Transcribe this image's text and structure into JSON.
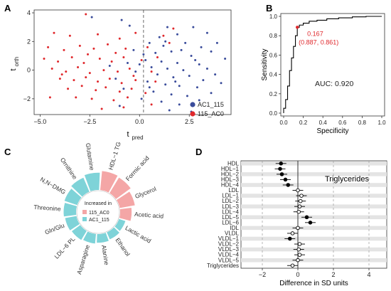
{
  "panels": {
    "A": "A",
    "B": "B",
    "C": "C",
    "D": "D"
  },
  "chart_data": [
    {
      "panel": "A",
      "type": "scatter",
      "xlabel": "t",
      "xlabel_sub": "pred",
      "ylabel": "t",
      "ylabel_sub": "orth",
      "xlim": [
        -5.3,
        4.6
      ],
      "ylim": [
        -3.1,
        4.2
      ],
      "x_ticks": [
        -5.0,
        -2.5,
        0.0,
        2.5
      ],
      "x_tick_labels": [
        "−5.0",
        "−2.5",
        "0.0",
        "2.5"
      ],
      "y_ticks": [
        -2,
        0,
        2,
        4
      ],
      "y_tick_labels": [
        "−2",
        "0",
        "2",
        "4"
      ],
      "vline": 0.2,
      "colors": {
        "AC1_115": "#3a4c9b",
        "115_AC0": "#e0282c"
      },
      "legend": {
        "position": "bottom-right",
        "entries": [
          "AC1_115",
          "115_AC0"
        ]
      },
      "series": [
        {
          "name": "AC1_115",
          "color": "#3a4c9b",
          "points": [
            [
              -2.4,
              3.7
            ],
            [
              -0.9,
              3.5
            ],
            [
              -0.5,
              3.1
            ],
            [
              1.4,
              3.0
            ],
            [
              2.7,
              3.0
            ],
            [
              1.0,
              2.3
            ],
            [
              1.9,
              2.5
            ],
            [
              3.4,
              2.6
            ],
            [
              0.5,
              1.9
            ],
            [
              1.2,
              1.7
            ],
            [
              2.3,
              1.9
            ],
            [
              3.1,
              1.6
            ],
            [
              3.6,
              1.3
            ],
            [
              -0.3,
              1.4
            ],
            [
              0.8,
              1.2
            ],
            [
              1.6,
              1.3
            ],
            [
              2.6,
              1.0
            ],
            [
              4.3,
              0.8
            ],
            [
              0.3,
              0.7
            ],
            [
              1.1,
              0.6
            ],
            [
              1.9,
              0.5
            ],
            [
              3.0,
              0.4
            ],
            [
              -0.6,
              0.5
            ],
            [
              0.6,
              0.2
            ],
            [
              1.4,
              0.1
            ],
            [
              2.2,
              0.0
            ],
            [
              3.4,
              0.1
            ],
            [
              3.8,
              -0.3
            ],
            [
              -0.2,
              -0.1
            ],
            [
              0.9,
              -0.3
            ],
            [
              1.7,
              -0.5
            ],
            [
              2.5,
              -0.4
            ],
            [
              3.2,
              -0.7
            ],
            [
              4.1,
              -0.9
            ],
            [
              0.4,
              -0.8
            ],
            [
              1.3,
              -1.0
            ],
            [
              2.0,
              -1.1
            ],
            [
              2.9,
              -1.2
            ],
            [
              -0.8,
              -1.3
            ],
            [
              0.7,
              -1.5
            ],
            [
              1.6,
              -1.7
            ],
            [
              2.4,
              -1.8
            ],
            [
              3.6,
              -1.6
            ],
            [
              0.1,
              -2.0
            ],
            [
              1.1,
              -2.2
            ],
            [
              2.0,
              -2.4
            ],
            [
              3.0,
              -2.1
            ],
            [
              -1.0,
              -2.5
            ],
            [
              1.5,
              -2.8
            ],
            [
              2.6,
              -2.9
            ],
            [
              0.5,
              -1.2
            ],
            [
              1.8,
              -0.8
            ],
            [
              2.8,
              0.7
            ],
            [
              3.9,
              1.9
            ],
            [
              0.2,
              1.1
            ],
            [
              1.3,
              2.0
            ],
            [
              2.1,
              1.4
            ],
            [
              -1.5,
              0.3
            ],
            [
              -1.2,
              -0.6
            ],
            [
              0.0,
              0.4
            ]
          ]
        },
        {
          "name": "115_AC0",
          "color": "#e0282c",
          "points": [
            [
              -2.7,
              3.9
            ],
            [
              -4.3,
              2.6
            ],
            [
              -3.5,
              2.4
            ],
            [
              -2.1,
              2.5
            ],
            [
              -1.0,
              2.2
            ],
            [
              -0.2,
              2.6
            ],
            [
              1.2,
              2.4
            ],
            [
              1.7,
              2.9
            ],
            [
              -4.6,
              1.6
            ],
            [
              -3.8,
              1.4
            ],
            [
              -3.0,
              1.7
            ],
            [
              -2.3,
              1.5
            ],
            [
              -1.6,
              1.8
            ],
            [
              -0.7,
              1.5
            ],
            [
              0.4,
              1.6
            ],
            [
              1.5,
              1.9
            ],
            [
              -4.8,
              0.8
            ],
            [
              -4.1,
              0.6
            ],
            [
              -3.4,
              0.9
            ],
            [
              -2.8,
              0.5
            ],
            [
              -2.0,
              0.8
            ],
            [
              -1.4,
              0.6
            ],
            [
              -0.8,
              0.9
            ],
            [
              0.1,
              0.7
            ],
            [
              0.9,
              0.9
            ],
            [
              -4.4,
              0.1
            ],
            [
              -3.7,
              -0.1
            ],
            [
              -3.1,
              0.2
            ],
            [
              -2.5,
              -0.2
            ],
            [
              -1.8,
              0.0
            ],
            [
              -1.1,
              -0.1
            ],
            [
              -0.5,
              0.1
            ],
            [
              0.6,
              -0.1
            ],
            [
              -4.0,
              -0.6
            ],
            [
              -3.3,
              -0.7
            ],
            [
              -2.7,
              -0.5
            ],
            [
              -2.1,
              -0.8
            ],
            [
              -1.5,
              -0.6
            ],
            [
              -0.9,
              -0.9
            ],
            [
              -0.2,
              -0.7
            ],
            [
              0.8,
              -0.8
            ],
            [
              -3.6,
              -1.3
            ],
            [
              -2.9,
              -1.1
            ],
            [
              -2.2,
              -1.4
            ],
            [
              -1.7,
              -1.2
            ],
            [
              -1.0,
              -1.5
            ],
            [
              -0.4,
              -1.3
            ],
            [
              0.3,
              -1.6
            ],
            [
              -4.5,
              -1.9
            ],
            [
              -3.2,
              -1.9
            ],
            [
              -2.4,
              -2.0
            ],
            [
              -1.3,
              -2.1
            ],
            [
              -0.6,
              -1.9
            ],
            [
              -1.9,
              -2.7
            ],
            [
              -0.8,
              -2.6
            ],
            [
              0.6,
              -2.4
            ],
            [
              -2.6,
              1.1
            ],
            [
              -1.2,
              1.2
            ],
            [
              -3.9,
              -0.3
            ],
            [
              -0.3,
              -0.4
            ]
          ]
        }
      ]
    },
    {
      "panel": "B",
      "type": "line",
      "xlabel": "Specificity",
      "ylabel": "Sensitivity",
      "xlim": [
        0,
        1
      ],
      "ylim": [
        0,
        1
      ],
      "x_ticks": [
        0.0,
        0.2,
        0.4,
        0.6,
        0.8,
        1.0
      ],
      "x_tick_labels": [
        "0.0",
        "0.2",
        "0.4",
        "0.6",
        "0.8",
        "1.0"
      ],
      "y_ticks": [
        0.0,
        0.2,
        0.4,
        0.6,
        0.8,
        1.0
      ],
      "y_tick_labels": [
        "0.0",
        "0.2",
        "0.4",
        "0.6",
        "0.8",
        "1.0"
      ],
      "auc_label": "AUC: 0.920",
      "optimal_point": {
        "x": 0.139,
        "y": 0.887,
        "label1": "0.167",
        "label2": "(0.887, 0.861)",
        "color": "#e0282c"
      },
      "series": [
        {
          "name": "",
          "color": "#000000",
          "x": [
            0.0,
            0.0,
            0.02,
            0.02,
            0.04,
            0.04,
            0.06,
            0.06,
            0.08,
            0.08,
            0.1,
            0.1,
            0.12,
            0.12,
            0.139,
            0.139,
            0.16,
            0.16,
            0.2,
            0.2,
            0.26,
            0.26,
            0.34,
            0.34,
            0.44,
            0.44,
            0.56,
            0.56,
            0.7,
            0.7,
            0.84,
            0.84,
            1.0
          ],
          "y": [
            0.0,
            0.05,
            0.05,
            0.14,
            0.14,
            0.28,
            0.28,
            0.44,
            0.44,
            0.57,
            0.57,
            0.69,
            0.69,
            0.8,
            0.8,
            0.887,
            0.887,
            0.91,
            0.91,
            0.93,
            0.93,
            0.95,
            0.95,
            0.96,
            0.96,
            0.975,
            0.975,
            0.985,
            0.985,
            0.995,
            0.995,
            1.0,
            1.0
          ]
        }
      ]
    },
    {
      "panel": "C",
      "type": "bar",
      "subtype": "circular",
      "legend_title": "Increased in",
      "legend": [
        "115_AC0",
        "AC1_115"
      ],
      "colors": {
        "115_AC0": "#f4a6a6",
        "AC1_115": "#7ed3d8"
      },
      "categories": [
        "HDL−1 TG",
        "Formic acid",
        "Glycerol",
        "Acetic acid",
        "Lactic acid",
        "Ethanol",
        "Alanine",
        "Asparagine",
        "LDL−6 PL",
        "Gln/Glu",
        "Threonine",
        "N,N−DMG",
        "Ornithine",
        "Glutamine"
      ],
      "values": [
        1.0,
        0.95,
        0.8,
        0.6,
        0.35,
        0.4,
        0.45,
        0.5,
        0.55,
        0.6,
        0.65,
        0.7,
        0.8,
        0.9
      ],
      "group": [
        "115_AC0",
        "115_AC0",
        "115_AC0",
        "115_AC0",
        "AC1_115",
        "AC1_115",
        "AC1_115",
        "AC1_115",
        "AC1_115",
        "AC1_115",
        "AC1_115",
        "AC1_115",
        "AC1_115",
        "AC1_115"
      ]
    },
    {
      "panel": "D",
      "type": "scatter",
      "subtype": "forest",
      "xlabel": "Difference in SD units",
      "xlim": [
        -3.2,
        5.0
      ],
      "x_ticks": [
        -2,
        0,
        2,
        4
      ],
      "x_tick_labels": [
        "−2",
        "0",
        "2",
        "4"
      ],
      "annotation": "Triglycerides",
      "categories": [
        "HDL",
        "HDL−1",
        "HDL−2",
        "HDL−3",
        "HDL−4",
        "LDL",
        "LDL−1",
        "LDL−2",
        "LDL−3",
        "LDL−4",
        "LDL−5",
        "LDL−6",
        "IDL",
        "VLDL",
        "VLDL−1",
        "VLDL−2",
        "VLDL−3",
        "VLDL−4",
        "VLDL−5",
        "Triglycerides"
      ],
      "values": [
        -0.95,
        -1.0,
        -0.9,
        -0.7,
        -0.55,
        0.0,
        0.2,
        0.15,
        0.1,
        0.05,
        0.5,
        0.7,
        0.0,
        -0.3,
        -0.45,
        0.1,
        0.05,
        0.1,
        0.0,
        -0.3
      ],
      "ci_low": [
        -1.25,
        -1.3,
        -1.2,
        -1.0,
        -0.85,
        -0.3,
        -0.1,
        -0.15,
        -0.2,
        -0.25,
        0.2,
        0.4,
        -0.3,
        -0.6,
        -0.75,
        -0.2,
        -0.25,
        -0.2,
        -0.3,
        -0.6
      ],
      "ci_high": [
        -0.65,
        -0.7,
        -0.6,
        -0.4,
        -0.25,
        0.3,
        0.5,
        0.45,
        0.4,
        0.35,
        0.8,
        1.0,
        0.3,
        0.0,
        -0.15,
        0.4,
        0.35,
        0.4,
        0.3,
        0.0
      ],
      "significant": [
        true,
        true,
        true,
        true,
        true,
        false,
        false,
        false,
        false,
        false,
        true,
        true,
        false,
        false,
        true,
        false,
        false,
        false,
        false,
        false
      ]
    }
  ]
}
